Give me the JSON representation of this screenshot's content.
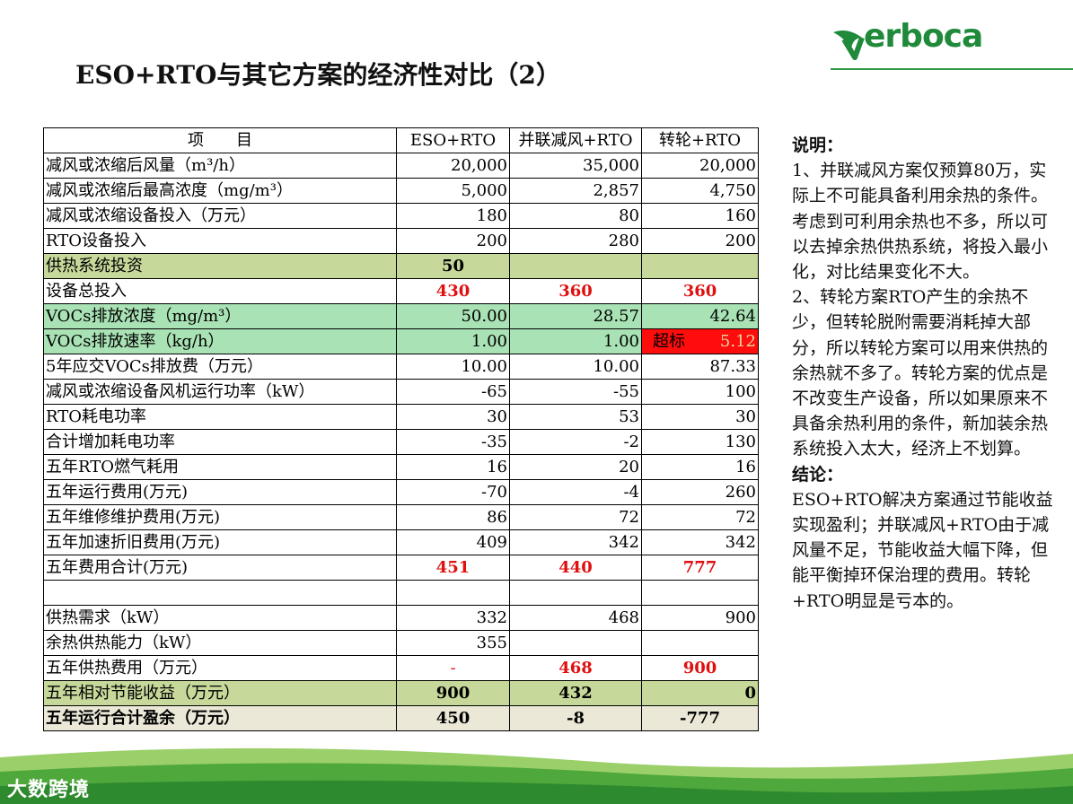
{
  "title": "ESO+RTO与其它方案的经济性对比（2）",
  "logo": {
    "text": "erboca",
    "color": "#1f8a3a"
  },
  "table": {
    "headers": [
      "项　　目",
      "ESO+RTO",
      "并联减风+RTO",
      "转轮+RTO"
    ],
    "rows": [
      {
        "label": "减风或浓缩后风量（m³/h）",
        "values": [
          "20,000",
          "35,000",
          "20,000"
        ]
      },
      {
        "label": "减风或浓缩后最高浓度（mg/m³）",
        "values": [
          "5,000",
          "2,857",
          "4,750"
        ]
      },
      {
        "label": "减风或浓缩设备投入（万元）",
        "values": [
          "180",
          "80",
          "160"
        ]
      },
      {
        "label": "RTO设备投入",
        "values": [
          "200",
          "280",
          "200"
        ]
      },
      {
        "label": "供热系统投资",
        "values": [
          "50",
          "",
          ""
        ]
      },
      {
        "label": "设备总投入",
        "values": [
          "430",
          "360",
          "360"
        ]
      },
      {
        "label": "VOCs排放浓度（mg/m³）",
        "values": [
          "50.00",
          "28.57",
          "42.64"
        ]
      },
      {
        "label": "VOCs排放速率（kg/h）",
        "values": [
          "1.00",
          "1.00",
          "5.12"
        ],
        "alert": "超标"
      },
      {
        "label": "5年应交VOCs排放费（万元）",
        "values": [
          "10.00",
          "10.00",
          "87.33"
        ]
      },
      {
        "label": "减风或浓缩设备风机运行功率（kW）",
        "values": [
          "-65",
          "-55",
          "100"
        ]
      },
      {
        "label": "RTO耗电功率",
        "values": [
          "30",
          "53",
          "30"
        ]
      },
      {
        "label": "合计增加耗电功率",
        "values": [
          "-35",
          "-2",
          "130"
        ]
      },
      {
        "label": "五年RTO燃气耗用",
        "values": [
          "16",
          "20",
          "16"
        ]
      },
      {
        "label": "五年运行费用(万元)",
        "values": [
          "-70",
          "-4",
          "260"
        ]
      },
      {
        "label": "五年维修维护费用(万元)",
        "values": [
          "86",
          "72",
          "72"
        ]
      },
      {
        "label": "五年加速折旧费用(万元)",
        "values": [
          "409",
          "342",
          "342"
        ]
      },
      {
        "label": "五年费用合计(万元)",
        "values": [
          "451",
          "440",
          "777"
        ]
      },
      {
        "label": "",
        "values": [
          "",
          "",
          ""
        ]
      },
      {
        "label": "供热需求（kW）",
        "values": [
          "332",
          "468",
          "900"
        ]
      },
      {
        "label": "余热供热能力（kW）",
        "values": [
          "355",
          "",
          ""
        ]
      },
      {
        "label": "五年供热费用（万元）",
        "values": [
          "-",
          "468",
          "900"
        ]
      },
      {
        "label": "五年相对节能收益（万元）",
        "values": [
          "900",
          "432",
          "0"
        ]
      },
      {
        "label": "五年运行合计盈余（万元）",
        "values": [
          "450",
          "-8",
          "-777"
        ]
      }
    ]
  },
  "notes": {
    "head1": "说明：",
    "p1": "1、并联减风方案仅预算80万，实际上不可能具备利用余热的条件。考虑到可利用余热也不多，所以可以去掉余热供热系统，将投入最小化，对比结果变化不大。",
    "p2": "2、转轮方案RTO产生的余热不少，但转轮脱附需要消耗掉大部分，所以转轮方案可以用来供热的余热就不多了。转轮方案的优点是不改变生产设备，所以如果原来不具备余热利用的条件，新加装余热系统投入太大，经济上不划算。",
    "head2": "结论：",
    "p3": "ESO+RTO解决方案通过节能收益实现盈利；并联减风+RTO由于减风量不足，节能收益大幅下降，但能平衡掉环保治理的费用。转轮+RTO明显是亏本的。"
  },
  "footer_brand": "大数跨境",
  "colors": {
    "accent_green": "#2e9a45",
    "olive": "#c6d89a",
    "mint": "#a9e2b5",
    "alert_red": "#ff0d0d",
    "value_red": "#e01010"
  }
}
